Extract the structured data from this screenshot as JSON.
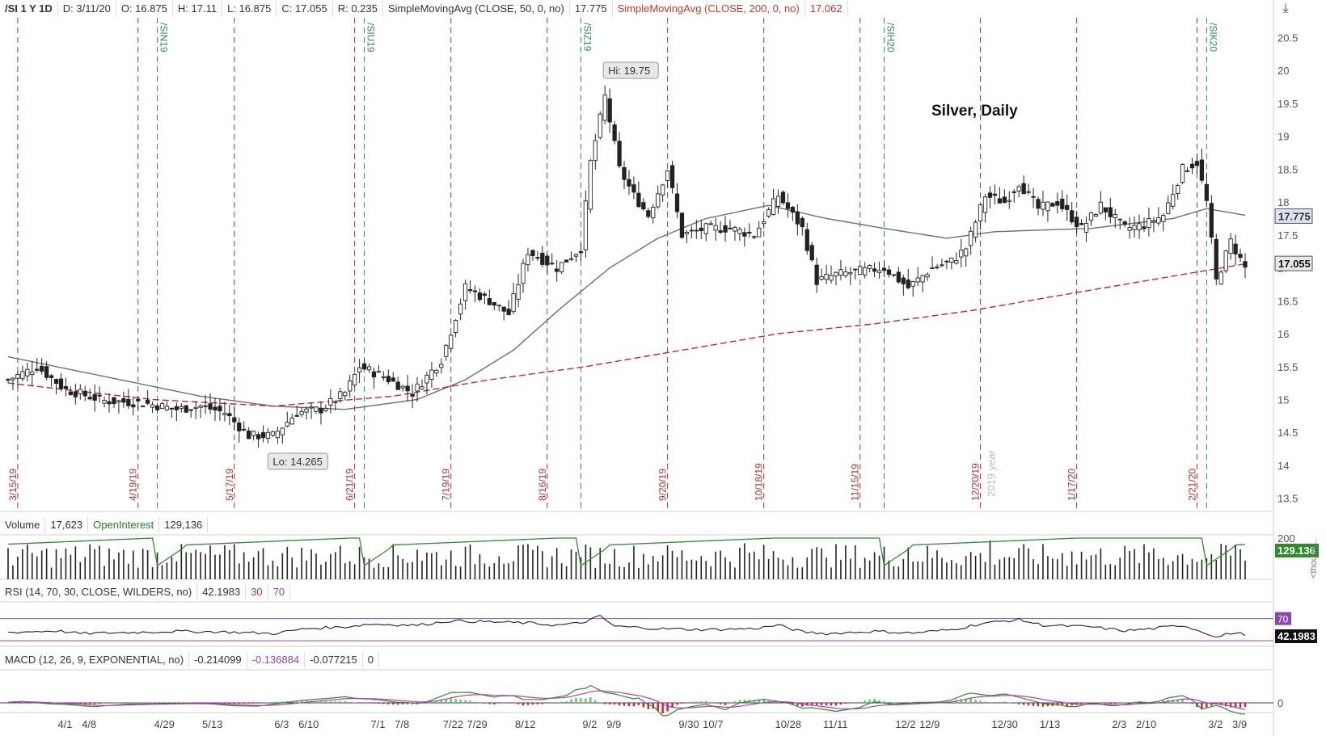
{
  "header": {
    "symbol": "/SI 1 Y 1D",
    "date": "D: 3/11/20",
    "open": "O: 16.875",
    "high": "H: 17.11",
    "low": "L: 16.875",
    "close": "C: 17.055",
    "range": "R: 0.235",
    "sma50_label": "SimpleMovingAvg (CLOSE, 50, 0, no)",
    "sma50_value": "17.775",
    "sma200_label": "SimpleMovingAvg (CLOSE, 200, 0, no)",
    "sma200_value": "17.062"
  },
  "volume_header": {
    "label": "Volume",
    "value": "17,623",
    "oi_label": "OpenInterest",
    "oi_value": "129,136"
  },
  "rsi_header": {
    "label": "RSI (14, 70, 30, CLOSE, WILDERS, no)",
    "value": "42.1983",
    "low": "30",
    "high": "70"
  },
  "macd_header": {
    "label": "MACD (12, 26, 9, EXPONENTIAL, no)",
    "value": "-0.214099",
    "avg": "-0.136884",
    "diff": "-0.077215",
    "zero": "0"
  },
  "colors": {
    "up": "#222222",
    "down": "#222222",
    "sma50": "#6b6b8a",
    "sma200": "#b03030",
    "expiry": "#b03030",
    "roll": "#2e8b57",
    "rsi": "#222222",
    "rsi_band": "#8e44ad",
    "macd": "#2e8b2e",
    "macd_avg": "#b040b0",
    "hist_up": "#55cc55",
    "hist_dn": "#cc2222",
    "oi": "#2e8b2e"
  },
  "chart_data": {
    "type": "candlestick",
    "title": "Silver, Daily",
    "price_axis": {
      "ticks": [
        "20.5",
        "20",
        "19.5",
        "19",
        "18.5",
        "18",
        "17.5",
        "17",
        "16.5",
        "16",
        "15.5",
        "15",
        "14.5",
        "14",
        "13.5"
      ],
      "range": [
        13.3,
        20.8
      ]
    },
    "x_ticks": [
      "4/1",
      "4/8",
      "4/29",
      "5/13",
      "6/3",
      "6/10",
      "7/1",
      "7/8",
      "7/22",
      "7/29",
      "8/12",
      "9/2",
      "9/9",
      "9/30",
      "10/7",
      "10/28",
      "11/11",
      "12/2",
      "12/9",
      "12/30",
      "1/13",
      "2/3",
      "2/10",
      "3/2",
      "3/9"
    ],
    "x_tick_index": [
      12,
      17,
      32,
      42,
      57,
      62,
      77,
      82,
      92,
      97,
      107,
      121,
      126,
      141,
      146,
      161,
      171,
      186,
      191,
      206,
      216,
      231,
      236,
      251,
      256
    ],
    "expiry_labels": [
      "3/15/19",
      "4/19/19",
      "5/17/19",
      "6/21/19",
      "7/19/19",
      "8/16/19",
      "9/20/19",
      "10/18/19",
      "11/15/19",
      "12/20/19",
      "1/17/20",
      "2/21/20"
    ],
    "expiry_index": [
      2,
      27,
      47,
      72,
      92,
      112,
      137,
      157,
      177,
      202,
      222,
      247
    ],
    "roll_labels": [
      "/SIN19",
      "/SIU19",
      "/SIZ19",
      "/SIH20",
      "/SIK20"
    ],
    "roll_index": [
      31,
      74,
      119,
      182,
      249
    ],
    "year_label": "2019 year",
    "year_index": 205,
    "annotations": {
      "hi": "Hi: 19.75",
      "hi_index": 125,
      "lo": "Lo: 14.265",
      "lo_index": 55
    },
    "close_anchors": [
      [
        0,
        15.3
      ],
      [
        6,
        15.5
      ],
      [
        12,
        15.15
      ],
      [
        20,
        14.98
      ],
      [
        28,
        14.95
      ],
      [
        35,
        14.85
      ],
      [
        40,
        14.9
      ],
      [
        45,
        14.8
      ],
      [
        50,
        14.45
      ],
      [
        55,
        14.45
      ],
      [
        60,
        14.8
      ],
      [
        65,
        14.85
      ],
      [
        70,
        15.1
      ],
      [
        73,
        15.5
      ],
      [
        78,
        15.35
      ],
      [
        84,
        15.1
      ],
      [
        90,
        15.6
      ],
      [
        95,
        16.7
      ],
      [
        100,
        16.5
      ],
      [
        104,
        16.3
      ],
      [
        108,
        17.25
      ],
      [
        114,
        17.0
      ],
      [
        119,
        17.3
      ],
      [
        121,
        18.6
      ],
      [
        124,
        19.6
      ],
      [
        127,
        18.5
      ],
      [
        130,
        18.1
      ],
      [
        133,
        17.8
      ],
      [
        137,
        18.5
      ],
      [
        140,
        17.5
      ],
      [
        145,
        17.6
      ],
      [
        150,
        17.6
      ],
      [
        155,
        17.5
      ],
      [
        160,
        18.1
      ],
      [
        165,
        17.6
      ],
      [
        168,
        16.8
      ],
      [
        172,
        16.9
      ],
      [
        177,
        16.95
      ],
      [
        182,
        17.0
      ],
      [
        187,
        16.7
      ],
      [
        192,
        17.0
      ],
      [
        196,
        17.1
      ],
      [
        199,
        17.3
      ],
      [
        203,
        18.1
      ],
      [
        207,
        18.0
      ],
      [
        210,
        18.3
      ],
      [
        214,
        17.9
      ],
      [
        218,
        18.0
      ],
      [
        223,
        17.6
      ],
      [
        227,
        17.95
      ],
      [
        232,
        17.6
      ],
      [
        236,
        17.65
      ],
      [
        240,
        17.8
      ],
      [
        244,
        18.5
      ],
      [
        247,
        18.6
      ],
      [
        249,
        18.0
      ],
      [
        251,
        16.8
      ],
      [
        254,
        17.4
      ],
      [
        257,
        17.0
      ]
    ],
    "sma50_anchors": [
      [
        0,
        15.65
      ],
      [
        20,
        15.35
      ],
      [
        40,
        15.05
      ],
      [
        55,
        14.9
      ],
      [
        70,
        14.85
      ],
      [
        85,
        15.0
      ],
      [
        95,
        15.3
      ],
      [
        105,
        15.75
      ],
      [
        115,
        16.4
      ],
      [
        125,
        17.0
      ],
      [
        135,
        17.45
      ],
      [
        145,
        17.75
      ],
      [
        158,
        17.95
      ],
      [
        170,
        17.75
      ],
      [
        182,
        17.6
      ],
      [
        195,
        17.45
      ],
      [
        205,
        17.55
      ],
      [
        225,
        17.6
      ],
      [
        242,
        17.75
      ],
      [
        249,
        17.9
      ],
      [
        257,
        17.8
      ]
    ],
    "sma200_anchors": [
      [
        0,
        15.25
      ],
      [
        30,
        15.0
      ],
      [
        55,
        14.9
      ],
      [
        80,
        15.05
      ],
      [
        100,
        15.3
      ],
      [
        120,
        15.5
      ],
      [
        140,
        15.75
      ],
      [
        160,
        16.0
      ],
      [
        180,
        16.15
      ],
      [
        200,
        16.35
      ],
      [
        220,
        16.6
      ],
      [
        240,
        16.85
      ],
      [
        257,
        17.06
      ]
    ],
    "volume": {
      "axis_tick": "200",
      "oi_value_label": "129.136",
      "unit_label": "<thousa..."
    },
    "rsi": {
      "anchors": [
        [
          0,
          45
        ],
        [
          10,
          48
        ],
        [
          15,
          43
        ],
        [
          25,
          45
        ],
        [
          35,
          47
        ],
        [
          45,
          46
        ],
        [
          55,
          43
        ],
        [
          62,
          52
        ],
        [
          70,
          55
        ],
        [
          75,
          60
        ],
        [
          85,
          58
        ],
        [
          92,
          66
        ],
        [
          100,
          64
        ],
        [
          108,
          62
        ],
        [
          114,
          58
        ],
        [
          119,
          62
        ],
        [
          123,
          74
        ],
        [
          126,
          56
        ],
        [
          135,
          52
        ],
        [
          145,
          50
        ],
        [
          155,
          52
        ],
        [
          160,
          58
        ],
        [
          165,
          46
        ],
        [
          170,
          43
        ],
        [
          180,
          47
        ],
        [
          188,
          44
        ],
        [
          196,
          50
        ],
        [
          203,
          62
        ],
        [
          210,
          68
        ],
        [
          215,
          58
        ],
        [
          225,
          55
        ],
        [
          232,
          48
        ],
        [
          238,
          52
        ],
        [
          244,
          58
        ],
        [
          249,
          44
        ],
        [
          251,
          36
        ],
        [
          254,
          44
        ],
        [
          257,
          42
        ]
      ],
      "band_low": 30,
      "band_high": 70,
      "value_label": "42.1983",
      "band_label": "70"
    },
    "macd": {
      "axis_tick": "0"
    },
    "last_price_label": "17.055",
    "sma50_label": "17.775",
    "total_bars": 258
  }
}
